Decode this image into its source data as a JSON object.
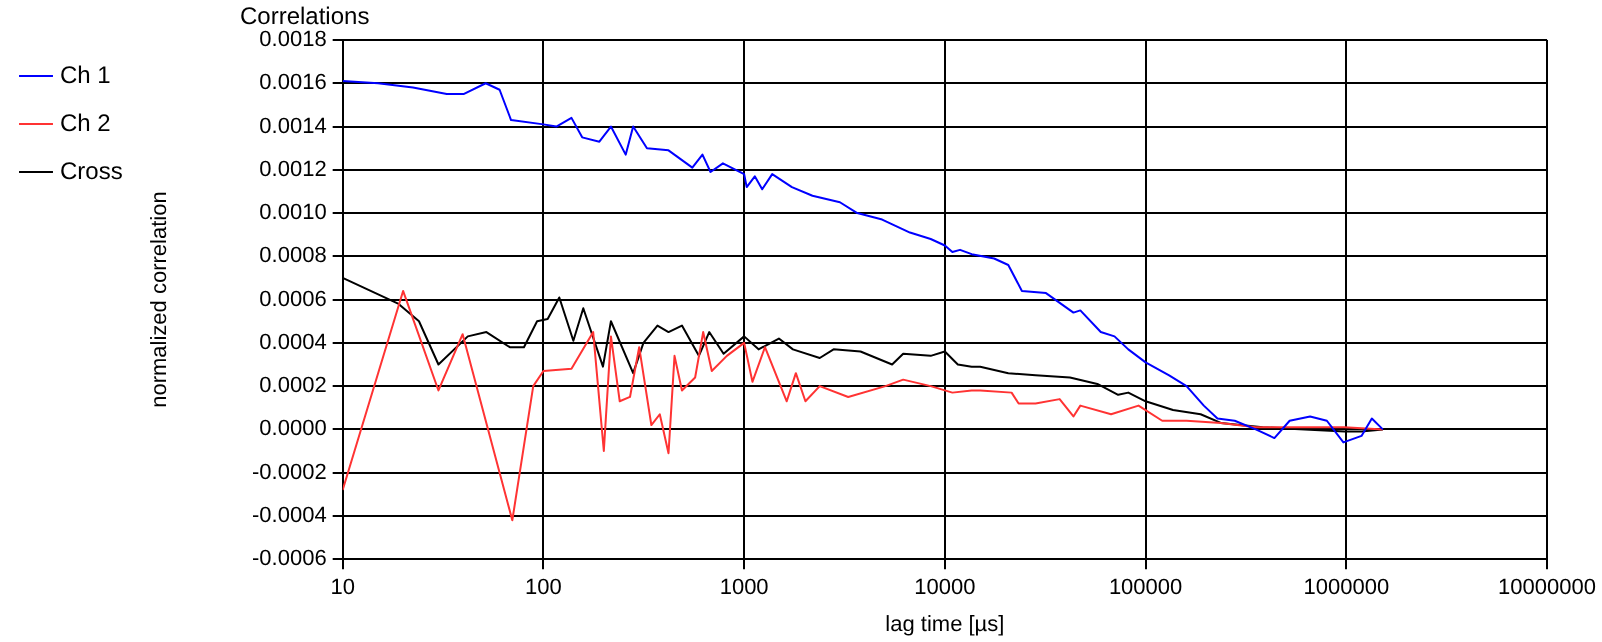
{
  "chart_data": {
    "type": "line",
    "title": "Correlations",
    "xlabel": "lag time [µs]",
    "ylabel": "normalized correlation",
    "log": "x",
    "grid": true,
    "legend": "top left",
    "marker": "none",
    "line_style": "solid",
    "xlim": [
      10,
      10000000
    ],
    "xticks": [
      10,
      100,
      1000,
      10000,
      100000,
      1000000,
      10000000
    ],
    "ylim": [
      -0.0006,
      0.0018
    ],
    "yticks": [
      {
        "value": -0.0006,
        "label": "-0.0006"
      },
      {
        "value": -0.0004,
        "label": "-0.0004"
      },
      {
        "value": -0.0002,
        "label": "-0.0002"
      },
      {
        "value": 0,
        "label": "0.0000"
      },
      {
        "value": 0.0002,
        "label": "0.0002"
      },
      {
        "value": 0.0004,
        "label": "0.0004"
      },
      {
        "value": 0.0006,
        "label": "0.0006"
      },
      {
        "value": 0.0008,
        "label": "0.0008"
      },
      {
        "value": 0.001,
        "label": "0.0010"
      },
      {
        "value": 0.0012,
        "label": "0.0012"
      },
      {
        "value": 0.0014,
        "label": "0.0014"
      },
      {
        "value": 0.0016,
        "label": "0.0016"
      },
      {
        "value": 0.0018,
        "label": "0.0018"
      }
    ],
    "series": [
      {
        "name": "Ch 1",
        "color": "#0000ff",
        "x": [
          10,
          15,
          22.4,
          33,
          40,
          51.6,
          60.5,
          69,
          100,
          116,
          138,
          156,
          190,
          217,
          257,
          280,
          328,
          420,
          552,
          620,
          680,
          784,
          1000,
          1030,
          1130,
          1230,
          1380,
          1730,
          2190,
          3000,
          3660,
          4870,
          6700,
          8500,
          10000,
          10900,
          11900,
          13600,
          17600,
          20700,
          24200,
          31900,
          43700,
          47300,
          59800,
          70000,
          82000,
          100000,
          131000,
          160000,
          195000,
          228000,
          278000,
          354000,
          438000,
          522000,
          660000,
          800000,
          967000,
          1190000,
          1340000,
          1520000
        ],
        "values": [
          0.00161,
          0.0016,
          0.00158,
          0.00155,
          0.00155,
          0.0016,
          0.00157,
          0.00143,
          0.00141,
          0.0014,
          0.00144,
          0.00135,
          0.00133,
          0.0014,
          0.00127,
          0.0014,
          0.0013,
          0.00129,
          0.00121,
          0.00127,
          0.00119,
          0.00123,
          0.00118,
          0.00112,
          0.00117,
          0.00111,
          0.00118,
          0.00112,
          0.00108,
          0.00105,
          0.001,
          0.00097,
          0.00091,
          0.00088,
          0.00085,
          0.00082,
          0.00083,
          0.00081,
          0.00079,
          0.00076,
          0.00064,
          0.00063,
          0.00054,
          0.00055,
          0.00045,
          0.00043,
          0.00037,
          0.00031,
          0.00025,
          0.0002,
          0.00011,
          5e-05,
          4e-05,
          0,
          -4e-05,
          4e-05,
          6e-05,
          4e-05,
          -6e-05,
          -3e-05,
          5e-05,
          0
        ]
      },
      {
        "name": "Ch 2",
        "color": "#ff3333",
        "x": [
          10,
          20,
          30,
          39.6,
          70,
          89,
          100,
          138,
          177,
          200,
          217,
          240,
          270,
          300,
          345,
          380,
          420,
          450,
          490,
          570,
          625,
          690,
          820,
          1000,
          1100,
          1270,
          1630,
          1810,
          2020,
          2380,
          3300,
          5060,
          6200,
          8500,
          10900,
          13600,
          15000,
          21500,
          23300,
          28300,
          37300,
          43700,
          47300,
          67300,
          92200,
          121000,
          160000,
          237000,
          354000,
          980000,
          1520000
        ],
        "values": [
          -0.00028,
          0.00064,
          0.00018,
          0.00044,
          -0.00042,
          0.0002,
          0.00027,
          0.00028,
          0.00045,
          -0.0001,
          0.00043,
          0.00013,
          0.00015,
          0.00038,
          2e-05,
          7e-05,
          -0.00011,
          0.00034,
          0.00018,
          0.00024,
          0.00045,
          0.00027,
          0.00034,
          0.0004,
          0.00022,
          0.00038,
          0.00013,
          0.00026,
          0.00013,
          0.0002,
          0.00015,
          0.0002,
          0.00023,
          0.0002,
          0.00017,
          0.00018,
          0.00018,
          0.00017,
          0.00012,
          0.00012,
          0.00014,
          6e-05,
          0.00011,
          7e-05,
          0.00011,
          4e-05,
          4e-05,
          3e-05,
          1e-05,
          1e-05,
          0
        ]
      },
      {
        "name": "Cross",
        "color": "#000000",
        "x": [
          10,
          19,
          24,
          30,
          42,
          52,
          68,
          80,
          93,
          105,
          120,
          141,
          158,
          198,
          217,
          280,
          315,
          370,
          420,
          490,
          595,
          670,
          790,
          1000,
          1180,
          1490,
          1750,
          2380,
          2790,
          3800,
          5460,
          6200,
          8500,
          10000,
          11600,
          13600,
          15000,
          20700,
          28300,
          42000,
          57500,
          73000,
          82000,
          100000,
          137000,
          188000,
          237000,
          383000,
          980000,
          1190000,
          1520000
        ],
        "values": [
          0.0007,
          0.00058,
          0.0005,
          0.0003,
          0.00043,
          0.00045,
          0.00038,
          0.00038,
          0.0005,
          0.00051,
          0.00061,
          0.00041,
          0.00056,
          0.00029,
          0.0005,
          0.00026,
          0.0004,
          0.00048,
          0.00045,
          0.00048,
          0.00034,
          0.00045,
          0.00035,
          0.00043,
          0.00037,
          0.00042,
          0.00037,
          0.00033,
          0.00037,
          0.00036,
          0.0003,
          0.00035,
          0.00034,
          0.00036,
          0.0003,
          0.00029,
          0.00029,
          0.00026,
          0.00025,
          0.00024,
          0.00021,
          0.00016,
          0.00017,
          0.00013,
          9e-05,
          7e-05,
          3e-05,
          1e-05,
          -1e-05,
          -1e-05,
          0
        ]
      }
    ]
  }
}
